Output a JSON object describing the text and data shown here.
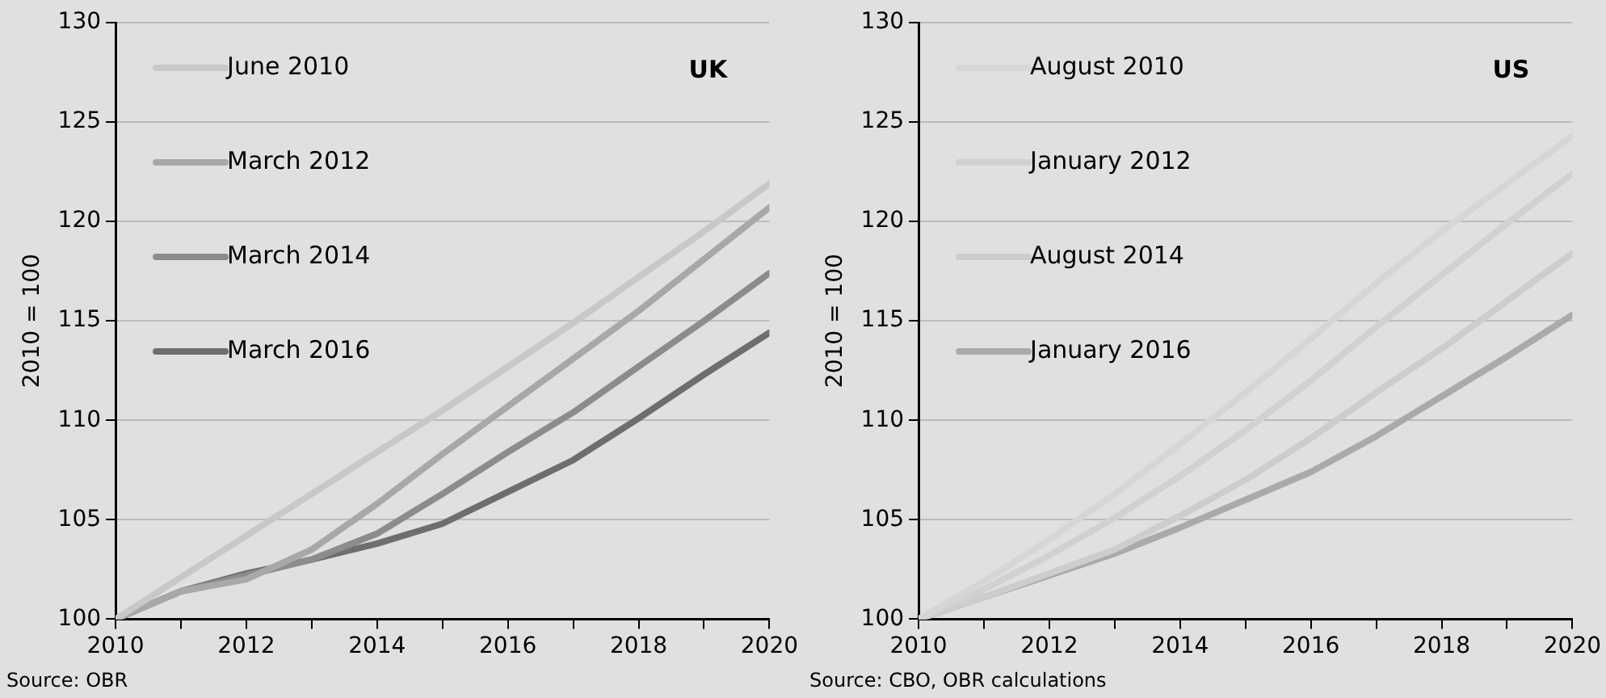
{
  "chart_data": [
    {
      "type": "line",
      "title": "UK",
      "ylabel": "2010 = 100",
      "x": [
        2010,
        2011,
        2012,
        2013,
        2014,
        2015,
        2016,
        2017,
        2018,
        2019,
        2020
      ],
      "series": [
        {
          "name": "June 2010",
          "color": "#c8c8c8",
          "values": [
            100,
            102.1,
            104.2,
            106.3,
            108.4,
            110.5,
            112.7,
            114.9,
            117.2,
            119.5,
            121.9
          ]
        },
        {
          "name": "March 2012",
          "color": "#a8a8a8",
          "values": [
            100,
            101.4,
            102.0,
            103.5,
            105.8,
            108.3,
            110.7,
            113.1,
            115.5,
            118.1,
            120.7
          ]
        },
        {
          "name": "March 2014",
          "color": "#8c8c8c",
          "values": [
            100,
            101.4,
            102.2,
            103.0,
            104.3,
            106.3,
            108.4,
            110.4,
            112.7,
            115.0,
            117.4
          ]
        },
        {
          "name": "March 2016",
          "color": "#6e6e6e",
          "values": [
            100,
            101.4,
            102.3,
            103.0,
            103.8,
            104.8,
            106.4,
            108.0,
            110.1,
            112.3,
            114.4
          ]
        }
      ],
      "xlim": [
        2010,
        2020
      ],
      "xticks": [
        2010,
        {
          "value": 2011,
          "label": null
        },
        2012,
        {
          "value": 2013,
          "label": null
        },
        2014,
        {
          "value": 2015,
          "label": null
        },
        2016,
        {
          "value": 2017,
          "label": null
        },
        2018,
        {
          "value": 2019,
          "label": null
        },
        2020
      ],
      "ylim": [
        100,
        130
      ],
      "yticks": [
        100,
        105,
        110,
        115,
        120,
        125,
        130
      ],
      "grid": "y",
      "legend": "top left",
      "marker": "none",
      "line_style": "solid",
      "annotations": [
        "Source: OBR"
      ]
    },
    {
      "type": "line",
      "title": "US",
      "ylabel": "2010 = 100",
      "x": [
        2010,
        2011,
        2012,
        2013,
        2014,
        2015,
        2016,
        2017,
        2018,
        2019,
        2020
      ],
      "series": [
        {
          "name": "August 2010",
          "color": "#d6d6d6",
          "values": [
            100,
            101.9,
            104.0,
            106.3,
            108.8,
            111.4,
            114.1,
            116.9,
            119.5,
            121.9,
            124.3
          ]
        },
        {
          "name": "January 2012",
          "color": "#d1d1d1",
          "values": [
            100,
            101.5,
            103.2,
            105.1,
            107.2,
            109.5,
            112.0,
            114.7,
            117.3,
            119.9,
            122.4
          ]
        },
        {
          "name": "August 2014",
          "color": "#cdcdcd",
          "values": [
            100,
            101.1,
            102.3,
            103.5,
            105.2,
            107.0,
            109.1,
            111.4,
            113.6,
            116.0,
            118.4
          ]
        },
        {
          "name": "January 2016",
          "color": "#aaaaaa",
          "values": [
            100,
            101.1,
            102.2,
            103.3,
            104.6,
            106.0,
            107.4,
            109.2,
            111.2,
            113.2,
            115.3
          ]
        }
      ],
      "xlim": [
        2010,
        2020
      ],
      "xticks": [
        2010,
        {
          "value": 2011,
          "label": null
        },
        2012,
        {
          "value": 2013,
          "label": null
        },
        2014,
        {
          "value": 2015,
          "label": null
        },
        2016,
        {
          "value": 2017,
          "label": null
        },
        2018,
        {
          "value": 2019,
          "label": null
        },
        2020
      ],
      "ylim": [
        100,
        130
      ],
      "yticks": [
        100,
        105,
        110,
        115,
        120,
        125,
        130
      ],
      "grid": "y",
      "legend": "top left",
      "marker": "none",
      "line_style": "solid",
      "annotations": [
        "Source: CBO, OBR calculations"
      ]
    }
  ]
}
